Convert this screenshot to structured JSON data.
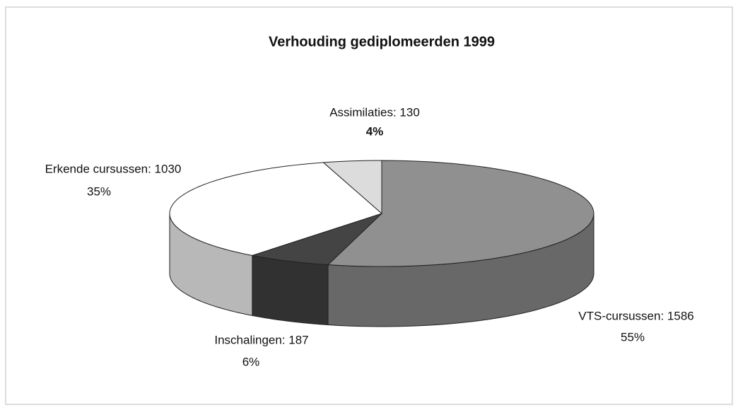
{
  "chart_data": {
    "type": "pie3d",
    "title": "Verhouding gediplomeerden 1999",
    "values": [
      1586,
      187,
      1030,
      130
    ],
    "value_labels": [
      "VTS-cursussen: 1586",
      "Inschalingen: 187",
      "Erkende cursussen: 1030",
      "Assimilaties: 130"
    ],
    "percents": [
      55,
      6,
      35,
      4
    ],
    "percent_labels": [
      "55%",
      "6%",
      "35%",
      "4%"
    ],
    "colors": [
      "#909090",
      "#444444",
      "#ffffff",
      "#dcdcdc"
    ]
  }
}
